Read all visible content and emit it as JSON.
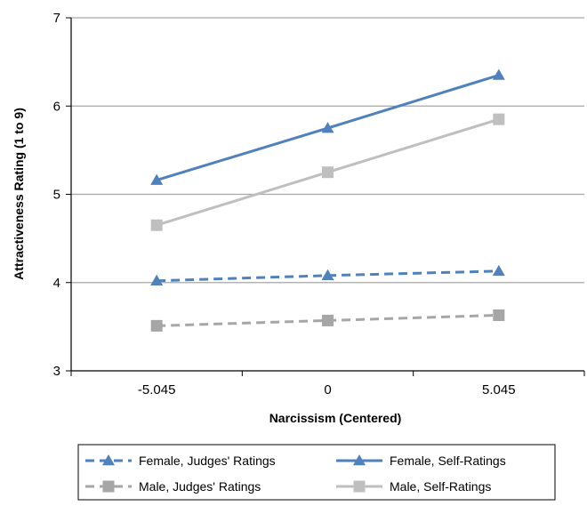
{
  "chart_data": {
    "type": "line",
    "title": "",
    "xlabel": "Narcissism (Centered)",
    "ylabel": "Attractiveness Rating (1 to 9)",
    "categories": [
      "-5.045",
      "0",
      "5.045"
    ],
    "ylim": [
      3,
      7
    ],
    "yticks": [
      "3",
      "4",
      "5",
      "6",
      "7"
    ],
    "grid": true,
    "legend_position": "bottom",
    "series": [
      {
        "name": "Female, Judges' Ratings",
        "values": [
          4.02,
          4.08,
          4.13
        ],
        "color": "#4f81bd",
        "line": "dashed",
        "marker": "triangle"
      },
      {
        "name": "Female, Self-Ratings",
        "values": [
          5.16,
          5.75,
          6.35
        ],
        "color": "#4f81bd",
        "line": "solid",
        "marker": "triangle"
      },
      {
        "name": "Male, Judges' Ratings",
        "values": [
          3.51,
          3.57,
          3.63
        ],
        "color": "#a6a6a6",
        "line": "dashed",
        "marker": "square"
      },
      {
        "name": "Male, Self-Ratings",
        "values": [
          4.65,
          5.25,
          5.85
        ],
        "color": "#bfbfbf",
        "line": "solid",
        "marker": "square"
      }
    ]
  }
}
